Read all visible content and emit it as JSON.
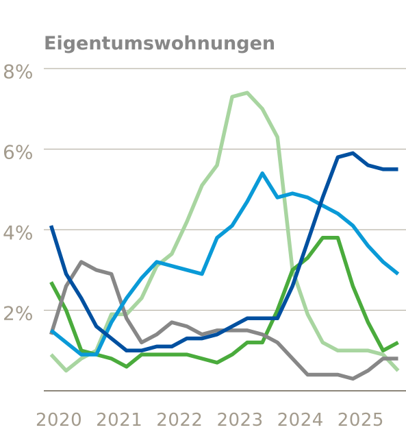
{
  "chart_data": {
    "type": "line",
    "title": "Eigentumswohnungen",
    "xlabel": "",
    "ylabel": "",
    "ylim": [
      0,
      8
    ],
    "xlim": [
      2019.75,
      2025.75
    ],
    "yticks": [
      2,
      4,
      6,
      8
    ],
    "ytick_labels": [
      "2%",
      "4%",
      "6%",
      "8%"
    ],
    "xticks": [
      2020,
      2021,
      2022,
      2023,
      2024,
      2025
    ],
    "xtick_labels": [
      "2020",
      "2021",
      "2022",
      "2023",
      "2024",
      "2025"
    ],
    "grid": "horizontal",
    "series": [
      {
        "color": "#a8d5a0",
        "x": [
          2019.87,
          2020.12,
          2020.37,
          2020.62,
          2020.87,
          2021.12,
          2021.37,
          2021.62,
          2021.87,
          2022.12,
          2022.37,
          2022.62,
          2022.87,
          2023.12,
          2023.37,
          2023.62,
          2023.87,
          2024.12,
          2024.37,
          2024.62,
          2024.87,
          2025.12,
          2025.37,
          2025.62
        ],
        "values": [
          0.9,
          0.5,
          0.8,
          1.0,
          1.9,
          1.9,
          2.3,
          3.1,
          3.4,
          4.2,
          5.1,
          5.6,
          7.3,
          7.4,
          7.0,
          6.3,
          3.0,
          1.9,
          1.2,
          1.0,
          1.0,
          1.0,
          0.9,
          0.5
        ]
      },
      {
        "color": "#4aab3c",
        "x": [
          2019.87,
          2020.12,
          2020.37,
          2020.62,
          2020.87,
          2021.12,
          2021.37,
          2021.62,
          2021.87,
          2022.12,
          2022.37,
          2022.62,
          2022.87,
          2023.12,
          2023.37,
          2023.62,
          2023.87,
          2024.12,
          2024.37,
          2024.62,
          2024.87,
          2025.12,
          2025.37,
          2025.62
        ],
        "values": [
          2.7,
          2.0,
          1.0,
          0.9,
          0.8,
          0.6,
          0.9,
          0.9,
          0.9,
          0.9,
          0.8,
          0.7,
          0.9,
          1.2,
          1.2,
          2.0,
          3.0,
          3.3,
          3.8,
          3.8,
          2.6,
          1.7,
          1.0,
          1.2
        ]
      },
      {
        "color": "#878787",
        "x": [
          2019.87,
          2020.12,
          2020.37,
          2020.62,
          2020.87,
          2021.12,
          2021.37,
          2021.62,
          2021.87,
          2022.12,
          2022.37,
          2022.62,
          2022.87,
          2023.12,
          2023.37,
          2023.62,
          2023.87,
          2024.12,
          2024.37,
          2024.62,
          2024.87,
          2025.12,
          2025.37,
          2025.62
        ],
        "values": [
          1.4,
          2.6,
          3.2,
          3.0,
          2.9,
          1.8,
          1.2,
          1.4,
          1.7,
          1.6,
          1.4,
          1.5,
          1.5,
          1.5,
          1.4,
          1.2,
          0.8,
          0.4,
          0.4,
          0.4,
          0.3,
          0.5,
          0.8,
          0.8
        ]
      },
      {
        "color": "#0a9ad7",
        "x": [
          2019.87,
          2020.12,
          2020.37,
          2020.62,
          2020.87,
          2021.12,
          2021.37,
          2021.62,
          2021.87,
          2022.12,
          2022.37,
          2022.62,
          2022.87,
          2023.12,
          2023.37,
          2023.62,
          2023.87,
          2024.12,
          2024.37,
          2024.62,
          2024.87,
          2025.12,
          2025.37,
          2025.62
        ],
        "values": [
          1.5,
          1.2,
          0.9,
          0.9,
          1.7,
          2.3,
          2.8,
          3.2,
          3.1,
          3.0,
          2.9,
          3.8,
          4.1,
          4.7,
          5.4,
          4.8,
          4.9,
          4.8,
          4.6,
          4.4,
          4.1,
          3.6,
          3.2,
          2.9
        ]
      },
      {
        "color": "#0050a0",
        "x": [
          2019.87,
          2020.12,
          2020.37,
          2020.62,
          2020.87,
          2021.12,
          2021.37,
          2021.62,
          2021.87,
          2022.12,
          2022.37,
          2022.62,
          2022.87,
          2023.12,
          2023.37,
          2023.62,
          2023.87,
          2024.12,
          2024.37,
          2024.62,
          2024.87,
          2025.12,
          2025.37,
          2025.62
        ],
        "values": [
          4.1,
          2.9,
          2.3,
          1.6,
          1.3,
          1.0,
          1.0,
          1.1,
          1.1,
          1.3,
          1.3,
          1.4,
          1.6,
          1.8,
          1.8,
          1.8,
          2.6,
          3.7,
          4.8,
          5.8,
          5.9,
          5.6,
          5.5,
          5.5
        ]
      }
    ]
  }
}
